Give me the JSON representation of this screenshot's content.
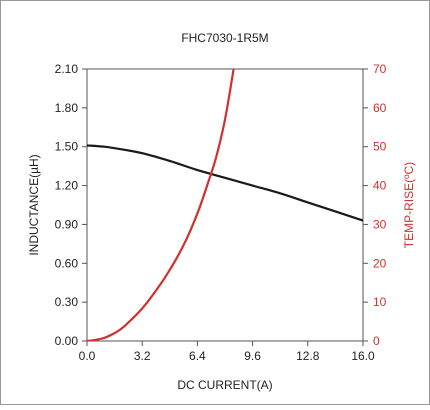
{
  "chart_data": {
    "type": "line",
    "title": "FHC7030-1R5M",
    "xlabel": "DC CURRENT(A)",
    "ylabel": "INDUCTANCE(µH)",
    "y2label": "TEMP-RISE(ºC)",
    "xlim": [
      0,
      16
    ],
    "ylim": [
      0,
      2.1
    ],
    "y2lim": [
      0,
      70
    ],
    "x_ticks": [
      "0.0",
      "3.2",
      "6.4",
      "9.6",
      "12.8",
      "16.0"
    ],
    "y_ticks": [
      "0.00",
      "0.30",
      "0.60",
      "0.90",
      "1.20",
      "1.50",
      "1.80",
      "2.10"
    ],
    "y2_ticks": [
      "0",
      "10",
      "20",
      "30",
      "40",
      "50",
      "60",
      "70"
    ],
    "grid": false,
    "colors": {
      "inductance": "#1a1a1a",
      "temp_rise": "#d32f2f",
      "frame": "#555555"
    },
    "series": [
      {
        "axis": "left",
        "color": "#1a1a1a",
        "x": [
          0,
          1,
          2,
          3.2,
          4.8,
          6.4,
          8,
          9.6,
          11.2,
          12.8,
          14.4,
          16
        ],
        "y": [
          1.51,
          1.5,
          1.48,
          1.45,
          1.39,
          1.32,
          1.26,
          1.2,
          1.14,
          1.07,
          1.0,
          0.93
        ]
      },
      {
        "axis": "right",
        "color": "#d32f2f",
        "x": [
          0,
          0.5,
          1,
          1.5,
          2,
          2.5,
          3,
          3.5,
          4,
          4.5,
          5,
          5.5,
          6,
          6.5,
          7,
          7.5,
          8,
          8.5
        ],
        "y": [
          0,
          0.3,
          0.8,
          1.8,
          3.2,
          5.2,
          7.4,
          10,
          13,
          16.2,
          19.8,
          23.8,
          28.5,
          34,
          40.5,
          47.5,
          57,
          70
        ]
      }
    ]
  }
}
